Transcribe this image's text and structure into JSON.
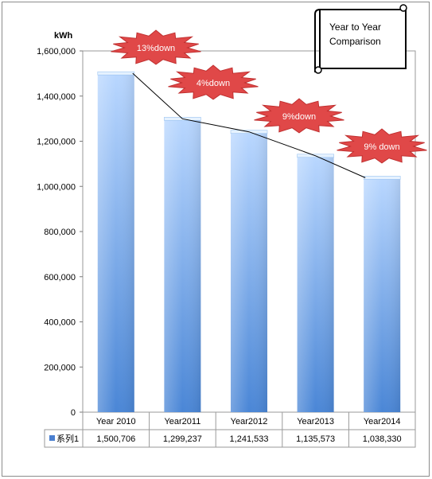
{
  "chart_data": {
    "type": "bar",
    "ylabel": "kWh",
    "ylim": [
      0,
      1600000
    ],
    "ytick_step": 200000,
    "ytick_labels": [
      "0",
      "200,000",
      "400,000",
      "600,000",
      "800,000",
      "1,000,000",
      "1,200,000",
      "1,400,000",
      "1,600,000"
    ],
    "categories": [
      "Year 2010",
      "Year2011",
      "Year2012",
      "Year2013",
      "Year2014"
    ],
    "series": [
      {
        "name": "系列1",
        "values": [
          1500706,
          1299237,
          1241533,
          1135573,
          1038330
        ],
        "value_labels": [
          "1,500,706",
          "1,299,237",
          "1,241,533",
          "1,135,573",
          "1,038,330"
        ]
      }
    ],
    "trend_line": true,
    "grid": false,
    "legend": "data-table",
    "callouts": [
      {
        "text": "13%down",
        "attached_to": "Year 2010"
      },
      {
        "text": "4%down",
        "attached_to": "Year2011"
      },
      {
        "text": "9%down",
        "attached_to": "Year2012"
      },
      {
        "text": "9% down",
        "attached_to": "Year2013"
      }
    ],
    "scroll_note": {
      "lines": [
        "Year to Year",
        "Comparison"
      ]
    },
    "colors": {
      "bar_top": "#b9d7ff",
      "bar_bottom": "#4a86d6",
      "burst_fill": "#e04848",
      "burst_text": "#ffffff",
      "legend_key": "#4a7fd0",
      "trend_line": "#000000"
    }
  }
}
